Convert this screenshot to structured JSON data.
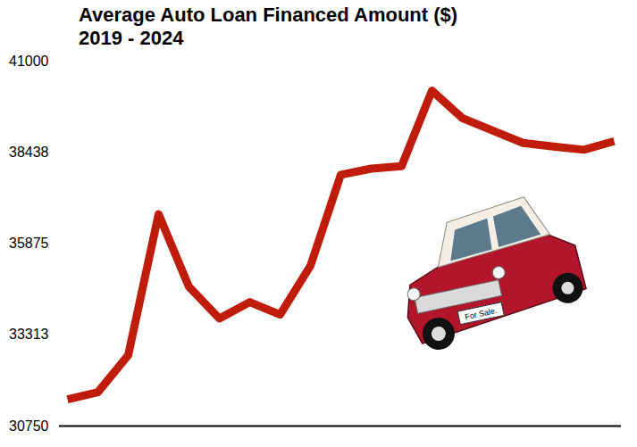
{
  "chart_data": {
    "type": "line",
    "title": "Average Auto Loan Financed Amount ($)",
    "subtitle": "2019 - 2024",
    "annotation": "For Sale.",
    "categories": [
      null,
      null,
      null,
      null,
      null,
      null,
      null,
      null,
      null,
      null,
      null,
      null,
      null,
      null,
      null,
      null,
      null,
      null,
      null
    ],
    "values": [
      31500,
      31700,
      32740,
      36700,
      34660,
      33770,
      34230,
      33880,
      35250,
      37810,
      37980,
      38050,
      40170,
      39400,
      39050,
      38700,
      38600,
      38510,
      38750
    ],
    "color": "#c01c0c",
    "ylim": [
      30750,
      41000
    ],
    "yticks": [
      30750,
      33313,
      35875,
      38438,
      41000
    ],
    "grid": false,
    "tick_labels": "y"
  }
}
